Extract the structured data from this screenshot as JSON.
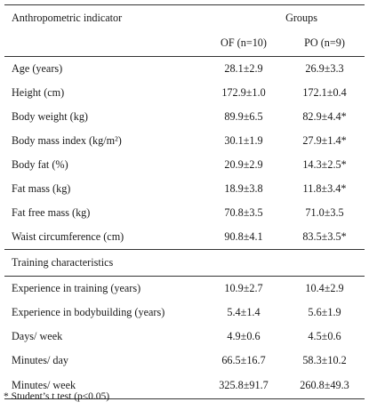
{
  "header": {
    "col1": "Anthropometric indicator",
    "groups": "Groups",
    "of": "OF (n=10)",
    "po": "PO (n=9)"
  },
  "anthropometric_rows": [
    {
      "label": "Age (years)",
      "of": "28.1±2.9",
      "po": "26.9±3.3"
    },
    {
      "label": "Height (cm)",
      "of": "172.9±1.0",
      "po": "172.1±0.4"
    },
    {
      "label": "Body weight (kg)",
      "of": "89.9±6.5",
      "po": "82.9±4.4*"
    },
    {
      "label": "Body mass index (kg/m²)",
      "of": "30.1±1.9",
      "po": "27.9±1.4*"
    },
    {
      "label": "Body fat (%)",
      "of": "20.9±2.9",
      "po": "14.3±2.5*"
    },
    {
      "label": "Fat mass (kg)",
      "of": "18.9±3.8",
      "po": "11.8±3.4*"
    },
    {
      "label": "Fat free mass (kg)",
      "of": "70.8±3.5",
      "po": "71.0±3.5"
    },
    {
      "label": "Waist circumference (cm)",
      "of": "90.8±4.1",
      "po": "83.5±3.5*"
    }
  ],
  "training_section": "Training characteristics",
  "training_rows": [
    {
      "label": "Experience in training (years)",
      "of": "10.9±2.7",
      "po": "10.4±2.9"
    },
    {
      "label": "Experience in bodybuilding (years)",
      "of": "5.4±1.4",
      "po": "5.6±1.9"
    },
    {
      "label": "Days/ week",
      "of": "4.9±0.6",
      "po": "4.5±0.6"
    },
    {
      "label": "Minutes/ day",
      "of": "66.5±16.7",
      "po": "58.3±10.2"
    },
    {
      "label": "Minutes/ week",
      "of": "325.8±91.7",
      "po": "260.8±49.3"
    }
  ],
  "footnote": "* Student’s t test (p≤0.05)"
}
